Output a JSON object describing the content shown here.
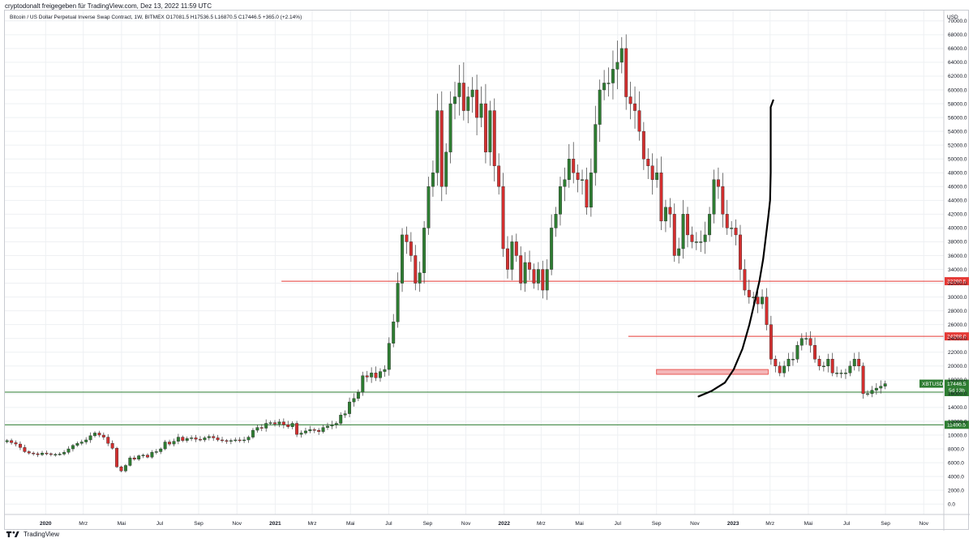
{
  "header": {
    "text": "cryptodonalt freigegeben für TradingView.com, Dez 13, 2022 11:59 UTC"
  },
  "footer": {
    "brand": "TradingView",
    "logo_icon": "tradingview-logo-icon"
  },
  "colors": {
    "up_candle": "#2e7d32",
    "down_candle": "#d32f2f",
    "resistance_line": "#e53935",
    "support_line": "#2e7d32",
    "projection": "#000000",
    "zone_fill": "#f4b6b8",
    "zone_stroke": "#e53935",
    "grid": "#eef0f3"
  },
  "chart_data": {
    "type": "candlestick",
    "title": "Bitcoin / US Dollar Perpetual Inverse Swap Contract, 1W, BITMEX",
    "ohlc_summary": "O17081.5 H17536.5 L16870.5 C17446.5 +365.0 (+2.14%)",
    "currency_label": "USD",
    "grid": true,
    "y_axis": {
      "ylim": [
        -1500,
        71500
      ],
      "ticks": [
        0,
        2000,
        4000,
        6000,
        8000,
        10000,
        12000,
        14000,
        16000,
        18000,
        20000,
        22000,
        24000,
        26000,
        28000,
        30000,
        32000,
        34000,
        36000,
        38000,
        40000,
        42000,
        44000,
        46000,
        48000,
        50000,
        52000,
        54000,
        56000,
        58000,
        60000,
        62000,
        64000,
        66000,
        68000,
        70000
      ],
      "tick_labels": [
        "0.0",
        "2000.0",
        "4000.0",
        "6000.0",
        "8000.0",
        "10000.0",
        "12000.0",
        "14000.0",
        "16000.0",
        "18000.0",
        "20000.0",
        "22000.0",
        "24000.0",
        "26000.0",
        "28000.0",
        "30000.0",
        "32000.0",
        "34000.0",
        "36000.0",
        "38000.0",
        "40000.0",
        "42000.0",
        "44000.0",
        "46000.0",
        "48000.0",
        "50000.0",
        "52000.0",
        "54000.0",
        "56000.0",
        "58000.0",
        "60000.0",
        "62000.0",
        "64000.0",
        "66000.0",
        "68000.0",
        "70000.0"
      ]
    },
    "x_axis": {
      "start": "2019-10-28",
      "end": "2023-12-03",
      "ticks": [
        {
          "date": "2020-01-01",
          "label": "2020",
          "bold": true
        },
        {
          "date": "2020-03-01",
          "label": "Mrz"
        },
        {
          "date": "2020-05-01",
          "label": "Mai"
        },
        {
          "date": "2020-07-01",
          "label": "Jul"
        },
        {
          "date": "2020-09-01",
          "label": "Sep"
        },
        {
          "date": "2020-11-01",
          "label": "Nov"
        },
        {
          "date": "2021-01-01",
          "label": "2021",
          "bold": true
        },
        {
          "date": "2021-03-01",
          "label": "Mrz"
        },
        {
          "date": "2021-05-01",
          "label": "Mai"
        },
        {
          "date": "2021-07-01",
          "label": "Jul"
        },
        {
          "date": "2021-09-01",
          "label": "Sep"
        },
        {
          "date": "2021-11-01",
          "label": "Nov"
        },
        {
          "date": "2022-01-01",
          "label": "2022",
          "bold": true
        },
        {
          "date": "2022-03-01",
          "label": "Mrz"
        },
        {
          "date": "2022-05-01",
          "label": "Mai"
        },
        {
          "date": "2022-07-01",
          "label": "Jul"
        },
        {
          "date": "2022-09-01",
          "label": "Sep"
        },
        {
          "date": "2022-11-01",
          "label": "Nov"
        },
        {
          "date": "2023-01-01",
          "label": "2023",
          "bold": true
        },
        {
          "date": "2023-03-01",
          "label": "Mrz"
        },
        {
          "date": "2023-05-01",
          "label": "Mai"
        },
        {
          "date": "2023-07-01",
          "label": "Jul"
        },
        {
          "date": "2023-09-01",
          "label": "Sep"
        },
        {
          "date": "2023-11-01",
          "label": "Nov"
        }
      ]
    },
    "candles": {
      "start_date": "2019-10-28",
      "interval": "1W",
      "closes": [
        9200,
        8900,
        8700,
        8200,
        7600,
        7400,
        7300,
        7150,
        7400,
        7300,
        7200,
        7200,
        7250,
        7500,
        8000,
        8500,
        8800,
        9000,
        9300,
        9900,
        10300,
        10000,
        9700,
        8800,
        8100,
        5400,
        4800,
        5600,
        6700,
        6500,
        7000,
        7100,
        6800,
        7500,
        7600,
        8000,
        9000,
        8700,
        9100,
        9700,
        9200,
        9500,
        9600,
        9400,
        9300,
        9600,
        9800,
        9600,
        9300,
        9200,
        9100,
        9200,
        9300,
        9200,
        9300,
        9700,
        10700,
        11100,
        11000,
        11700,
        11800,
        11600,
        11900,
        11500,
        11200,
        11700,
        10100,
        10300,
        10600,
        10800,
        10700,
        10500,
        11100,
        11300,
        11500,
        11700,
        12900,
        13100,
        14800,
        15300,
        16200,
        18600,
        18400,
        19000,
        18300,
        19200,
        19500,
        23300,
        26400,
        32000,
        39000,
        38000,
        36000,
        32000,
        33500,
        40000,
        46000,
        48000,
        57000,
        46000,
        51000,
        58000,
        59000,
        61000,
        57000,
        59000,
        60000,
        56000,
        58000,
        51000,
        57000,
        49000,
        46000,
        37000,
        34000,
        38000,
        36000,
        32000,
        35000,
        34000,
        32000,
        34000,
        31000,
        34000,
        40000,
        42000,
        46000,
        47000,
        50000,
        48000,
        47000,
        47000,
        43000,
        48000,
        55000,
        60000,
        61000,
        61000,
        63000,
        64000,
        66000,
        59000,
        58000,
        57000,
        54000,
        50000,
        49000,
        47000,
        48000,
        41000,
        43000,
        42000,
        36000,
        37000,
        42000,
        39000,
        38000,
        38000,
        38000,
        39000,
        42000,
        47000,
        46000,
        42000,
        40000,
        40000,
        39000,
        34000,
        31000,
        30000,
        30000,
        29000,
        30000,
        26000,
        21000,
        20000,
        19000,
        20000,
        21000,
        21000,
        23000,
        24000,
        24000,
        23000,
        21000,
        20000,
        20000,
        21000,
        19000,
        19000,
        19000,
        19000,
        20000,
        21000,
        20000,
        16000,
        16000,
        16500,
        16800,
        17081.5,
        17446.5
      ]
    },
    "horizontal_levels": [
      {
        "value": 32290.5,
        "label": "32290.5",
        "kind": "resistance",
        "start_date": "2021-01-11"
      },
      {
        "value": 24298.0,
        "label": "24298.0",
        "kind": "resistance",
        "start_date": "2022-07-18"
      },
      {
        "value": 16224.5,
        "label": "16224.5",
        "kind": "support",
        "start_date": "2019-10-28"
      },
      {
        "value": 11490.5,
        "label": "11490.5",
        "kind": "support",
        "start_date": "2019-10-28"
      }
    ],
    "zone": {
      "from_date": "2022-09-01",
      "to_date": "2023-02-26",
      "low": 18800,
      "high": 19500
    },
    "price_marker": {
      "symbol": "XBTUSD",
      "price": "17446.5",
      "countdown": "5d 13h",
      "value": 17446.5
    },
    "projection_path": [
      [
        "2022-11-07",
        15600
      ],
      [
        "2022-11-28",
        16400
      ],
      [
        "2022-12-19",
        17600
      ],
      [
        "2023-01-02",
        19500
      ],
      [
        "2023-01-16",
        22500
      ],
      [
        "2023-01-27",
        26000
      ],
      [
        "2023-02-05",
        29500
      ],
      [
        "2023-02-12",
        32290
      ],
      [
        "2023-02-18",
        35500
      ],
      [
        "2023-02-22",
        38500
      ],
      [
        "2023-02-26",
        41500
      ],
      [
        "2023-03-01",
        44000
      ],
      [
        "2023-03-02",
        48000
      ],
      [
        "2023-03-02",
        53000
      ],
      [
        "2023-03-02",
        57500
      ],
      [
        "2023-03-06",
        58500
      ]
    ]
  }
}
